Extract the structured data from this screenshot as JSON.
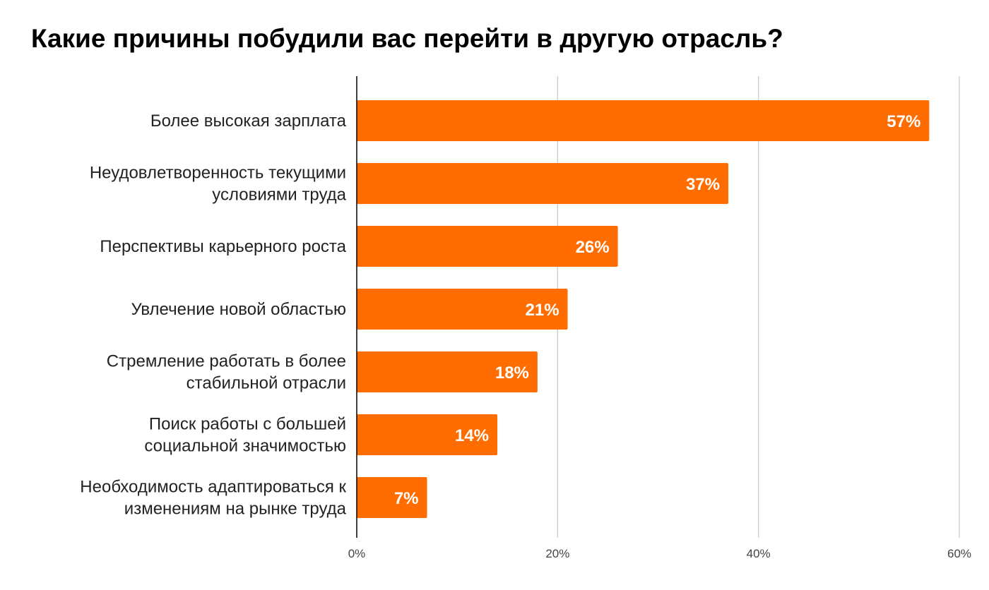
{
  "chart_data": {
    "type": "bar",
    "orientation": "horizontal",
    "title": "Какие причины побудили вас перейти в другую отрасль?",
    "categories": [
      [
        "Более высокая зарплата"
      ],
      [
        "Неудовлетворенность текущими",
        "условиями труда"
      ],
      [
        "Перспективы карьерного роста"
      ],
      [
        "Увлечение новой областью"
      ],
      [
        "Стремление работать в более",
        "стабильной отрасли"
      ],
      [
        "Поиск работы с большей",
        "социальной значимостью"
      ],
      [
        "Необходимость адаптироваться к",
        "изменениям на рынке труда"
      ]
    ],
    "values": [
      57,
      37,
      26,
      21,
      18,
      14,
      7
    ],
    "value_labels": [
      "57%",
      "37%",
      "26%",
      "21%",
      "18%",
      "14%",
      "7%"
    ],
    "xlim": [
      0,
      60
    ],
    "x_ticks": [
      0,
      20,
      40,
      60
    ],
    "x_tick_labels": [
      "0%",
      "20%",
      "40%",
      "60%"
    ],
    "grid": "vertical",
    "legend": "none",
    "colors": {
      "bar": "#ff6d00",
      "grid": "#cccccc",
      "axis": "#000000"
    }
  }
}
